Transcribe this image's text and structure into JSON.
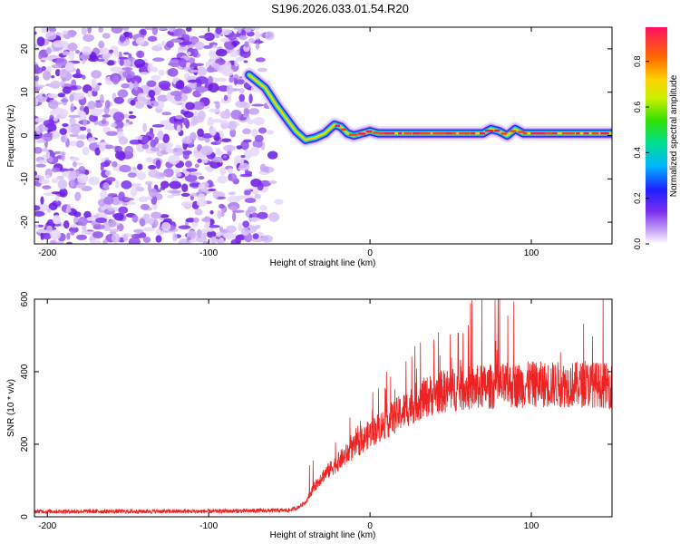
{
  "figure_title": "S196.2026.033.01.54.R20",
  "chart_data": [
    {
      "type": "heatmap",
      "title": "S196.2026.033.01.54.R20",
      "xlabel": "Height of straight line (km)",
      "ylabel": "Frequency (Hz)",
      "xlim": [
        -208,
        150
      ],
      "ylim": [
        -25,
        25
      ],
      "x_ticks": [
        -200,
        -100,
        0,
        100
      ],
      "y_ticks": [
        20,
        10,
        0,
        -10,
        -20
      ],
      "colorbar": {
        "label": "Normalized spectral amplitude",
        "range": [
          0,
          0.95
        ],
        "ticks": [
          0.0,
          0.2,
          0.4,
          0.6,
          0.8
        ]
      },
      "noise_region_x": [
        -208,
        -55
      ],
      "signal_track": {
        "x": [
          -75,
          -65,
          -58,
          -52,
          -46,
          -40,
          -34,
          -28,
          -22,
          -18,
          -14,
          -10,
          -5,
          0,
          5,
          10,
          20,
          40,
          60,
          70,
          75,
          80,
          85,
          90,
          95,
          100,
          120,
          140,
          150
        ],
        "freq": [
          14,
          11,
          7,
          4,
          1,
          -1,
          -0.5,
          0.5,
          2.5,
          2,
          0.5,
          0,
          0.5,
          1,
          0.5,
          0.5,
          0.5,
          0.5,
          0.5,
          0.5,
          1.5,
          1,
          0,
          1.5,
          0.5,
          0.5,
          0.5,
          0.5,
          0.5
        ]
      }
    },
    {
      "type": "line",
      "xlabel": "Height of straight line (km)",
      "ylabel": "SNR (10 * v/v)",
      "xlim": [
        -208,
        150
      ],
      "ylim": [
        0,
        600
      ],
      "x_ticks": [
        -200,
        -100,
        0,
        100
      ],
      "y_ticks": [
        0,
        200,
        400,
        600
      ],
      "series": [
        {
          "name": "SNR",
          "color": "#ee2222",
          "x": [
            -208,
            -150,
            -100,
            -50,
            -45,
            -40,
            -35,
            -30,
            -20,
            -10,
            0,
            10,
            20,
            30,
            40,
            50,
            60,
            80,
            100,
            120,
            140,
            150
          ],
          "values": [
            15,
            15,
            15,
            18,
            25,
            40,
            80,
            110,
            150,
            190,
            230,
            260,
            290,
            320,
            340,
            350,
            355,
            360,
            365,
            365,
            365,
            360
          ],
          "spike_peaks_approx": [
            480,
            500,
            530,
            560,
            600
          ]
        }
      ]
    }
  ]
}
